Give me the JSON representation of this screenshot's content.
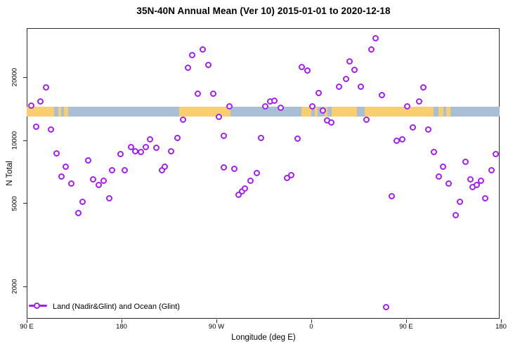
{
  "title": "35N-40N Annual Mean (Ver 10)   2015-01-01 to 2020-12-18",
  "colors": {
    "marker": "#A020F0",
    "land": "#F8CE6E",
    "ocean": "#A9BFD6",
    "axis": "#2b2b2b"
  },
  "chart_data": {
    "type": "scatter",
    "title": "35N-40N Annual Mean (Ver 10)   2015-01-01 to 2020-12-18",
    "xlabel": "Longitude (deg E)",
    "ylabel": "N Total",
    "x_axis": {
      "note": "longitude axis wraps: 90E to 180E going eastward 450 degrees",
      "range_deg": [
        90,
        540
      ],
      "ticks": [
        {
          "label": "90 E",
          "deg": 90
        },
        {
          "label": "180",
          "deg": 180
        },
        {
          "label": "90 W",
          "deg": 270
        },
        {
          "label": "0",
          "deg": 360
        },
        {
          "label": "90 E",
          "deg": 450
        },
        {
          "label": "180",
          "deg": 540
        }
      ]
    },
    "y_axis": {
      "scale": "log10",
      "range": [
        1400,
        34000
      ],
      "ticks": [
        {
          "label": "20000",
          "value": 20000
        },
        {
          "label": "10000",
          "value": 10000
        },
        {
          "label": "5000",
          "value": 5000
        },
        {
          "label": "2000",
          "value": 2000
        }
      ],
      "grid": false
    },
    "legend": {
      "label": "Land (Nadir&Glint) and Ocean (Glint)",
      "position": "bottom-left"
    },
    "map_band": {
      "description": "land/ocean strip for 35N-40N plotted across the longitude axis",
      "y_top_value": 14500,
      "y_bottom_value": 13000,
      "segments": [
        [
          90,
          116,
          "land"
        ],
        [
          116,
          120,
          "ocean"
        ],
        [
          120,
          122.7,
          "land"
        ],
        [
          122.7,
          125.3,
          "ocean"
        ],
        [
          125.3,
          129.3,
          "land"
        ],
        [
          129.3,
          234.7,
          "ocean"
        ],
        [
          234.7,
          283.3,
          "land"
        ],
        [
          283.3,
          350.7,
          "ocean"
        ],
        [
          350.7,
          360,
          "land"
        ],
        [
          360,
          363.3,
          "ocean"
        ],
        [
          363.3,
          366,
          "land"
        ],
        [
          366,
          372.7,
          "ocean"
        ],
        [
          372.7,
          375.3,
          "land"
        ],
        [
          375.3,
          379.3,
          "ocean"
        ],
        [
          379.3,
          403.3,
          "land"
        ],
        [
          403.3,
          410.7,
          "ocean"
        ],
        [
          410.7,
          476,
          "land"
        ],
        [
          476,
          480.7,
          "ocean"
        ],
        [
          480.7,
          485.3,
          "land"
        ],
        [
          485.3,
          488,
          "ocean"
        ],
        [
          488,
          492,
          "land"
        ],
        [
          492,
          538.7,
          "ocean"
        ]
      ]
    },
    "series": [
      {
        "name": "Land (Nadir&Glint) and Ocean (Glint)",
        "marker": "open-circle",
        "points_deg_value": [
          [
            94,
            14700
          ],
          [
            98.7,
            11600
          ],
          [
            103.3,
            15300
          ],
          [
            108,
            17900
          ],
          [
            112.7,
            11300
          ],
          [
            118,
            8700
          ],
          [
            122.7,
            6700
          ],
          [
            127.3,
            7500
          ],
          [
            132,
            6200
          ],
          [
            138.7,
            4500
          ],
          [
            143.3,
            5100
          ],
          [
            148,
            8000
          ],
          [
            152.7,
            6500
          ],
          [
            158,
            6100
          ],
          [
            163.3,
            6400
          ],
          [
            168,
            5300
          ],
          [
            171.3,
            7200
          ],
          [
            178.7,
            8600
          ],
          [
            183.3,
            7200
          ],
          [
            188.7,
            9300
          ],
          [
            193.3,
            8900
          ],
          [
            198,
            8800
          ],
          [
            202.7,
            9300
          ],
          [
            207.3,
            10100
          ],
          [
            212.7,
            9200
          ],
          [
            218,
            7200
          ],
          [
            221.3,
            7500
          ],
          [
            227.3,
            8900
          ],
          [
            232.7,
            10300
          ],
          [
            238,
            12600
          ],
          [
            242.7,
            22300
          ],
          [
            246.7,
            25500
          ],
          [
            252,
            16700
          ],
          [
            257.3,
            27100
          ],
          [
            262,
            23000
          ],
          [
            266.7,
            16700
          ],
          [
            272,
            13000
          ],
          [
            276.7,
            7400
          ],
          [
            277.3,
            10500
          ],
          [
            282,
            14500
          ],
          [
            286.7,
            7300
          ],
          [
            290.7,
            5500
          ],
          [
            294,
            5700
          ],
          [
            297.3,
            5900
          ],
          [
            302,
            6400
          ],
          [
            308,
            7000
          ],
          [
            312,
            10300
          ],
          [
            316,
            14600
          ],
          [
            320.7,
            15300
          ],
          [
            325.3,
            15500
          ],
          [
            331.3,
            14300
          ],
          [
            336.7,
            6600
          ],
          [
            341.3,
            6800
          ],
          [
            346.7,
            10200
          ],
          [
            351.3,
            22500
          ],
          [
            356,
            21500
          ],
          [
            361.3,
            14600
          ],
          [
            366.7,
            16900
          ],
          [
            371.3,
            13900
          ],
          [
            375.3,
            12500
          ],
          [
            378.7,
            12200
          ],
          [
            386,
            18000
          ],
          [
            393.3,
            19600
          ],
          [
            396,
            23800
          ],
          [
            401.3,
            21700
          ],
          [
            407.3,
            18000
          ],
          [
            412,
            12600
          ],
          [
            416.7,
            27100
          ],
          [
            421.3,
            30700
          ],
          [
            426.7,
            16500
          ],
          [
            431.3,
            1600
          ],
          [
            436,
            5400
          ],
          [
            440.7,
            10000
          ],
          [
            446,
            10100
          ],
          [
            451.3,
            14600
          ],
          [
            456,
            11500
          ],
          [
            462,
            15300
          ],
          [
            466,
            17900
          ],
          [
            471.3,
            11300
          ],
          [
            476,
            8800
          ],
          [
            480.7,
            6700
          ],
          [
            484.7,
            7500
          ],
          [
            490,
            6200
          ],
          [
            496.7,
            4400
          ],
          [
            500.7,
            5100
          ],
          [
            506,
            7900
          ],
          [
            511.3,
            6500
          ],
          [
            512.7,
            6000
          ],
          [
            516.7,
            6100
          ],
          [
            520.7,
            6400
          ],
          [
            525.3,
            5300
          ],
          [
            530.7,
            7200
          ],
          [
            535.3,
            8600
          ]
        ]
      }
    ]
  }
}
